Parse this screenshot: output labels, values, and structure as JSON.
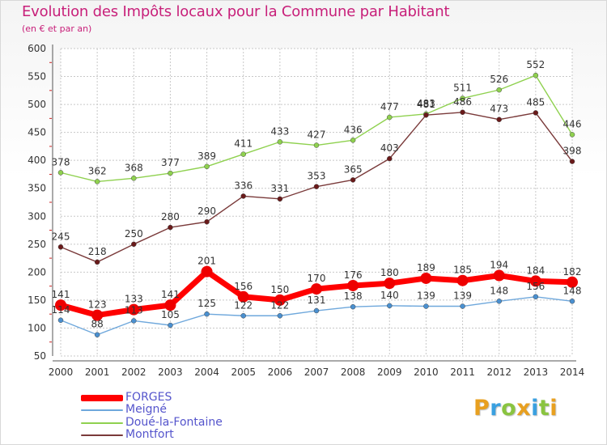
{
  "title": "Evolution des Impôts locaux pour la Commune par Habitant",
  "subtitle": "(en € et par an)",
  "logo": {
    "text": "Proxiti",
    "letters": [
      {
        "char": "P",
        "color": "#e8a020"
      },
      {
        "char": "r",
        "color": "#3aa0e0"
      },
      {
        "char": "o",
        "color": "#8ac440"
      },
      {
        "char": "x",
        "color": "#e8a020"
      },
      {
        "char": "i",
        "color": "#3aa0e0"
      },
      {
        "char": "t",
        "color": "#8ac440"
      },
      {
        "char": "i",
        "color": "#e8a020"
      }
    ]
  },
  "chart_data": {
    "type": "line",
    "title": "Evolution des Impôts locaux pour la Commune par Habitant",
    "subtitle": "(en € et par an)",
    "xlabel": "",
    "ylabel": "",
    "ylim": [
      50,
      600
    ],
    "yticks": [
      50,
      100,
      150,
      200,
      250,
      300,
      350,
      400,
      450,
      500,
      550,
      600
    ],
    "grid": true,
    "legend_position": "bottom-left",
    "x": [
      "2000",
      "2001",
      "2002",
      "2003",
      "2004",
      "2005",
      "2006",
      "2007",
      "2008",
      "2009",
      "2010",
      "2011",
      "2012",
      "2013",
      "2014"
    ],
    "series": [
      {
        "name": "Doué-la-Fontaine",
        "color": "#8fd14f",
        "marker_color": "#8fd14f",
        "values": [
          378,
          362,
          368,
          377,
          389,
          411,
          433,
          427,
          436,
          477,
          483,
          511,
          526,
          552,
          446
        ]
      },
      {
        "name": "Montfort",
        "color": "#7a3a3a",
        "marker_color": "#6a1a1a",
        "values": [
          245,
          218,
          250,
          280,
          290,
          336,
          331,
          353,
          365,
          403,
          481,
          486,
          473,
          485,
          398
        ]
      },
      {
        "name": "Meigné",
        "color": "#6fa8dc",
        "marker_color": "#4a90d0",
        "values": [
          114,
          88,
          113,
          105,
          125,
          122,
          122,
          131,
          138,
          140,
          139,
          139,
          148,
          156,
          148
        ]
      },
      {
        "name": "FORGES",
        "color": "#ff0000",
        "marker_color": "#ee0000",
        "values": [
          141,
          123,
          133,
          141,
          201,
          156,
          150,
          170,
          176,
          180,
          189,
          185,
          194,
          184,
          182
        ]
      }
    ]
  },
  "legend": [
    {
      "name": "FORGES",
      "color": "#ff0000"
    },
    {
      "name": "Meigné",
      "color": "#6fa8dc"
    },
    {
      "name": "Doué-la-Fontaine",
      "color": "#8fd14f"
    },
    {
      "name": "Montfort",
      "color": "#7a3a3a"
    }
  ]
}
